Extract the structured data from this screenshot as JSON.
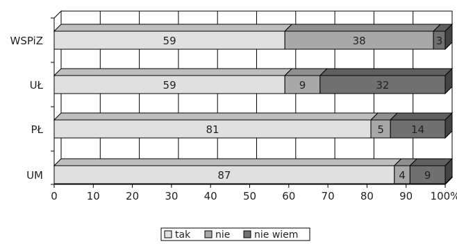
{
  "chart_data": {
    "type": "bar",
    "orientation": "horizontal",
    "stacked": true,
    "percent_scale": true,
    "categories": [
      "WSPiZ",
      "UŁ",
      "PŁ",
      "UM"
    ],
    "series": [
      {
        "name": "tak",
        "values": [
          59,
          59,
          81,
          87
        ],
        "color": "#e0e0e0"
      },
      {
        "name": "nie",
        "values": [
          38,
          9,
          5,
          4
        ],
        "color": "#a8a8a8"
      },
      {
        "name": "nie wiem",
        "values": [
          3,
          32,
          14,
          9
        ],
        "color": "#707070"
      }
    ],
    "x_ticks": [
      "0",
      "10",
      "20",
      "30",
      "40",
      "50",
      "60",
      "70",
      "80",
      "90",
      "100%"
    ],
    "xlim": [
      0,
      100
    ],
    "grid": true,
    "legend_position": "bottom"
  }
}
